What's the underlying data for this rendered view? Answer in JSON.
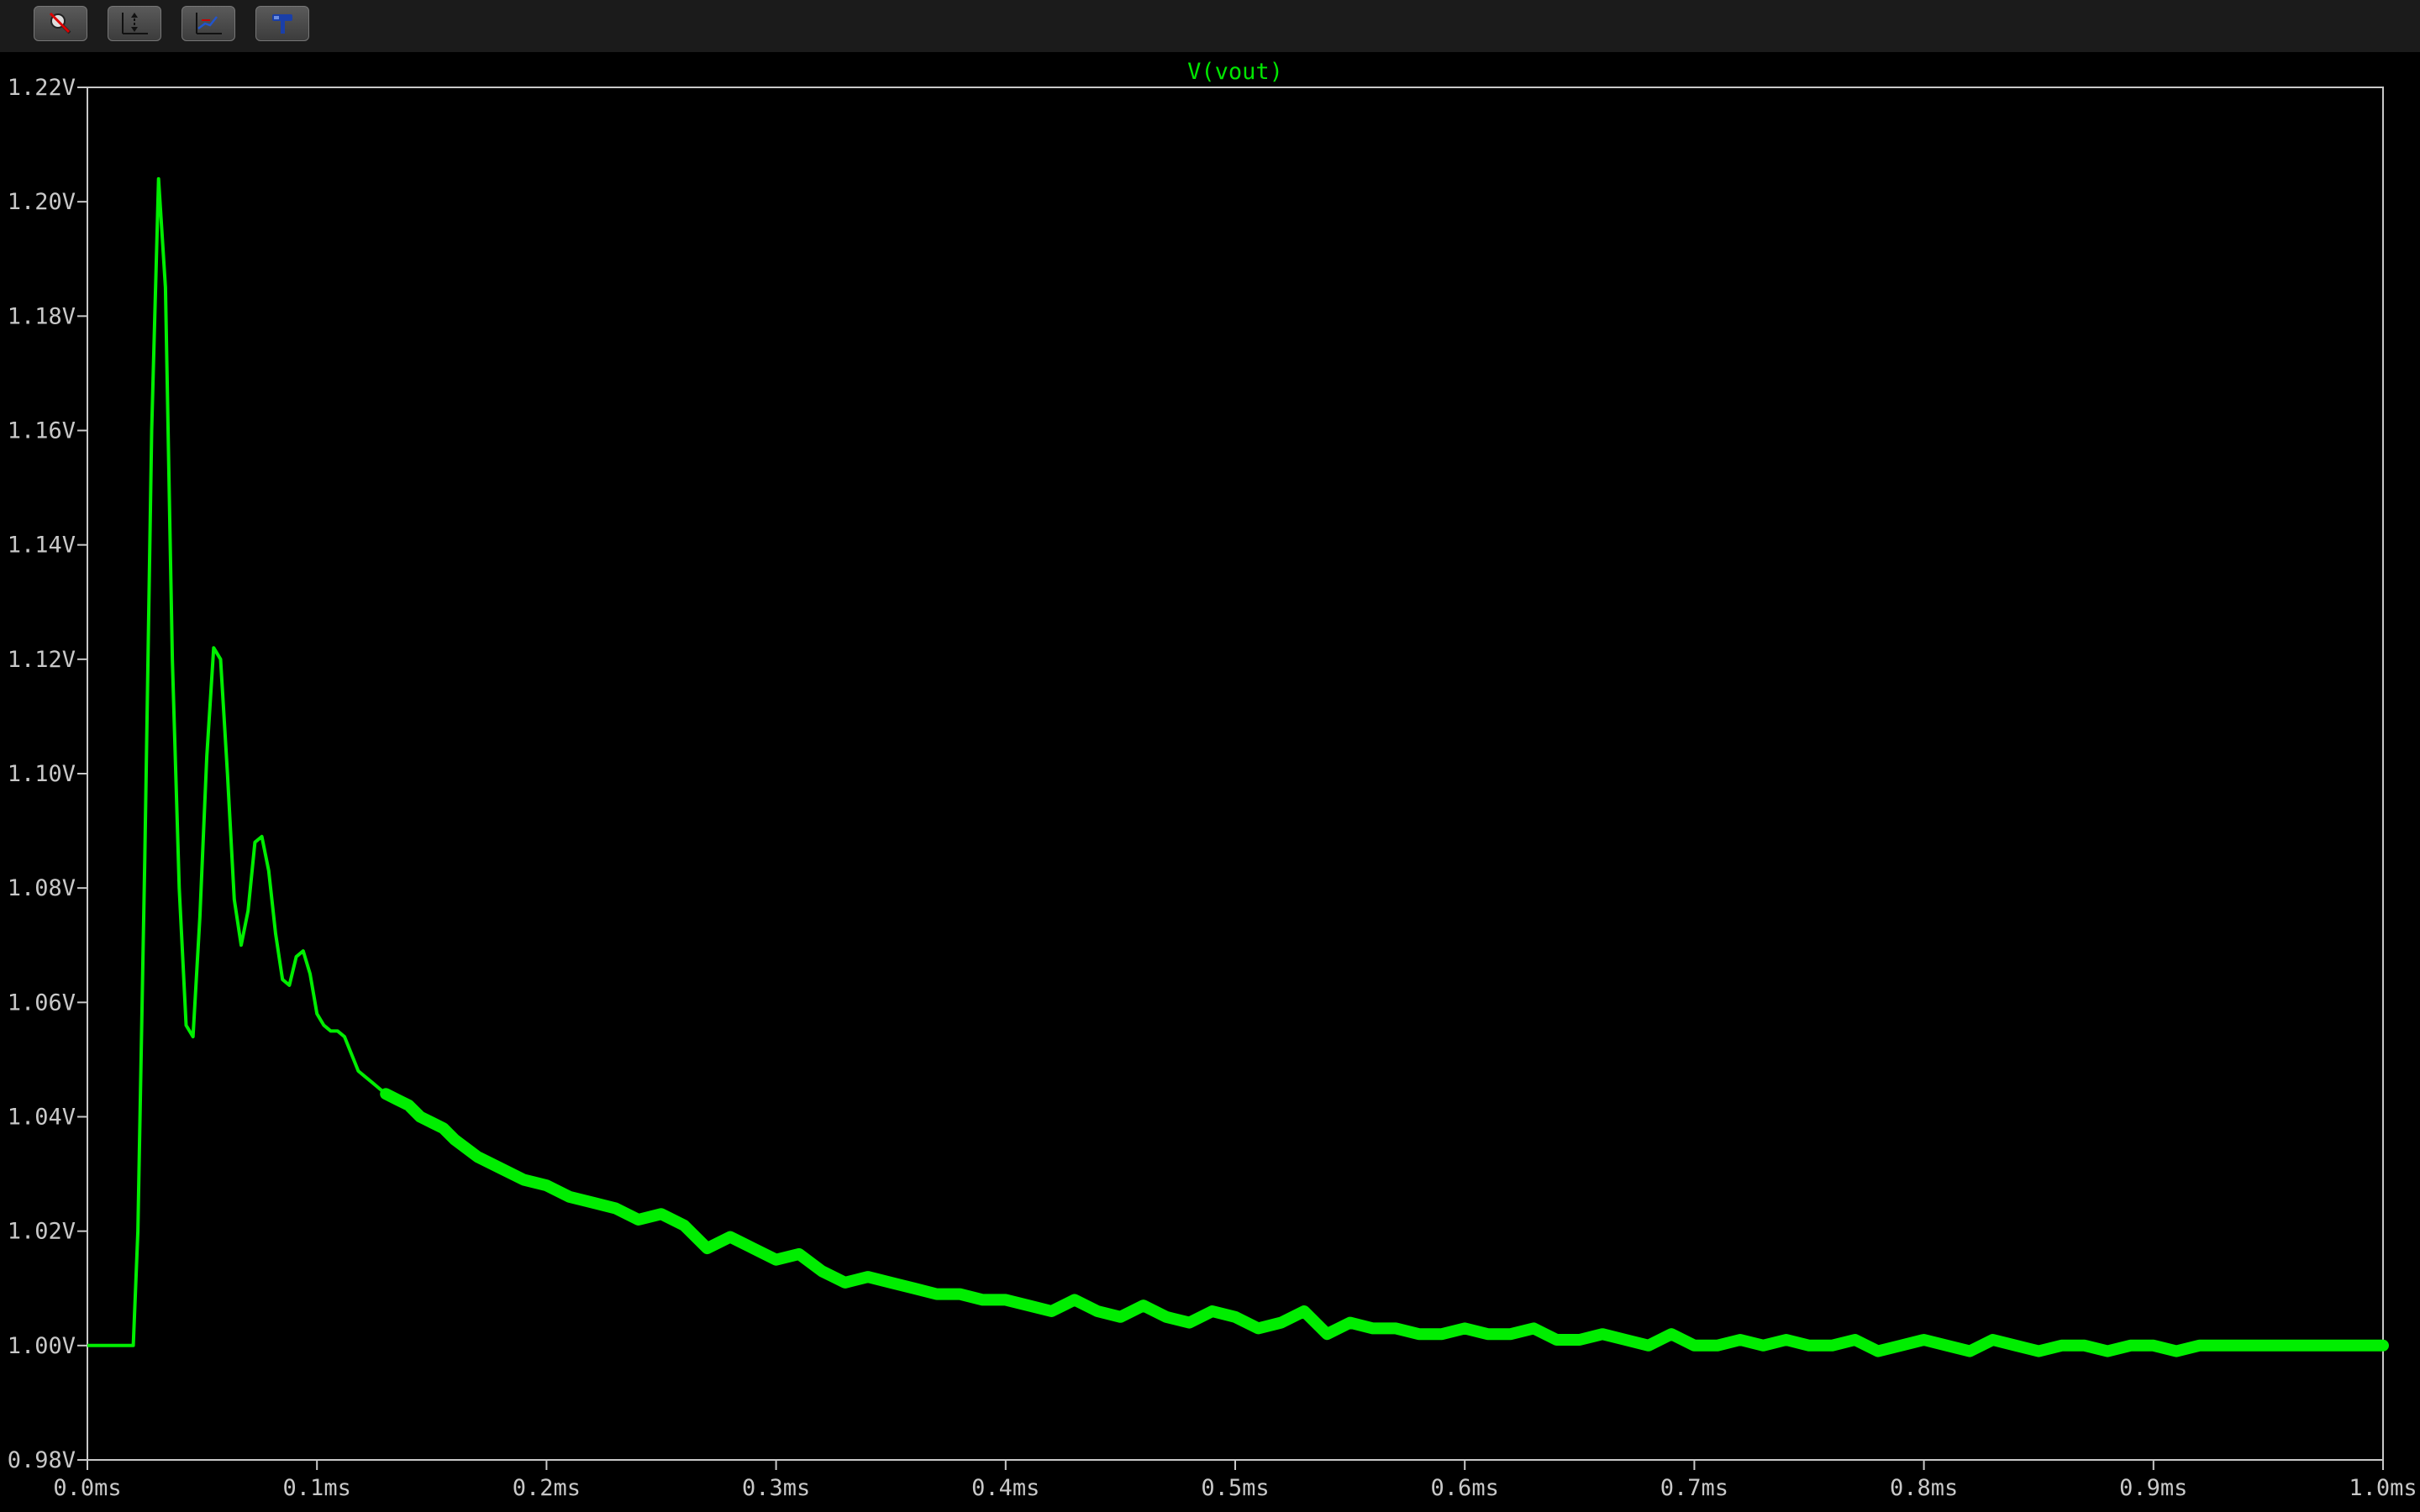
{
  "toolbar": {
    "buttons": [
      {
        "name": "zoom-cancel",
        "icon": "magnifier-cancel-icon"
      },
      {
        "name": "autorange-y",
        "icon": "autorange-y-icon"
      },
      {
        "name": "autorange-x",
        "icon": "autorange-x-icon"
      },
      {
        "name": "probe",
        "icon": "hammer-probe-icon"
      }
    ]
  },
  "colors": {
    "background": "#000000",
    "trace": "#00ee00",
    "axis": "#c8c8c8",
    "toolbar": "#1b1b1b"
  },
  "chart_data": {
    "type": "line",
    "title": "V(vout)",
    "xlabel": "",
    "ylabel": "",
    "xlim": [
      0.0,
      1.0
    ],
    "ylim": [
      0.98,
      1.22
    ],
    "grid": false,
    "x_ticks": [
      0.0,
      0.1,
      0.2,
      0.3,
      0.4,
      0.5,
      0.6,
      0.7,
      0.8,
      0.9,
      1.0
    ],
    "x_tick_labels": [
      "0.0ms",
      "0.1ms",
      "0.2ms",
      "0.3ms",
      "0.4ms",
      "0.5ms",
      "0.6ms",
      "0.7ms",
      "0.8ms",
      "0.9ms",
      "1.0ms"
    ],
    "y_ticks": [
      0.98,
      1.0,
      1.02,
      1.04,
      1.06,
      1.08,
      1.1,
      1.12,
      1.14,
      1.16,
      1.18,
      1.2,
      1.22
    ],
    "y_tick_labels": [
      "0.98V",
      "1.00V",
      "1.02V",
      "1.04V",
      "1.06V",
      "1.08V",
      "1.10V",
      "1.12V",
      "1.14V",
      "1.16V",
      "1.18V",
      "1.20V",
      "1.22V"
    ],
    "series": [
      {
        "name": "V(vout)",
        "x": [
          0.0,
          0.02,
          0.022,
          0.025,
          0.028,
          0.031,
          0.034,
          0.037,
          0.04,
          0.043,
          0.046,
          0.049,
          0.052,
          0.055,
          0.058,
          0.061,
          0.064,
          0.067,
          0.07,
          0.073,
          0.076,
          0.079,
          0.082,
          0.085,
          0.088,
          0.091,
          0.094,
          0.097,
          0.1,
          0.103,
          0.106,
          0.109,
          0.112,
          0.115,
          0.118,
          0.121,
          0.124,
          0.127,
          0.13,
          0.135,
          0.14,
          0.145,
          0.15,
          0.155,
          0.16,
          0.17,
          0.18,
          0.19,
          0.2,
          0.21,
          0.22,
          0.23,
          0.24,
          0.25,
          0.26,
          0.27,
          0.28,
          0.29,
          0.3,
          0.31,
          0.32,
          0.33,
          0.34,
          0.35,
          0.36,
          0.37,
          0.38,
          0.39,
          0.4,
          0.41,
          0.42,
          0.43,
          0.44,
          0.45,
          0.46,
          0.47,
          0.48,
          0.49,
          0.5,
          0.51,
          0.52,
          0.53,
          0.54,
          0.55,
          0.56,
          0.57,
          0.58,
          0.59,
          0.6,
          0.61,
          0.62,
          0.63,
          0.64,
          0.65,
          0.66,
          0.67,
          0.68,
          0.69,
          0.7,
          0.71,
          0.72,
          0.73,
          0.74,
          0.75,
          0.76,
          0.77,
          0.78,
          0.79,
          0.8,
          0.81,
          0.82,
          0.83,
          0.84,
          0.85,
          0.86,
          0.87,
          0.88,
          0.89,
          0.9,
          0.91,
          0.92,
          0.93,
          0.94,
          0.95,
          0.96,
          0.97,
          0.98,
          0.99,
          1.0
        ],
        "y": [
          1.0,
          1.0,
          1.02,
          1.085,
          1.16,
          1.204,
          1.185,
          1.12,
          1.08,
          1.056,
          1.054,
          1.075,
          1.103,
          1.122,
          1.12,
          1.1,
          1.078,
          1.07,
          1.076,
          1.088,
          1.089,
          1.083,
          1.072,
          1.064,
          1.063,
          1.068,
          1.069,
          1.065,
          1.058,
          1.056,
          1.055,
          1.055,
          1.054,
          1.051,
          1.048,
          1.047,
          1.046,
          1.045,
          1.044,
          1.043,
          1.042,
          1.04,
          1.039,
          1.038,
          1.036,
          1.033,
          1.031,
          1.029,
          1.028,
          1.026,
          1.025,
          1.024,
          1.022,
          1.023,
          1.021,
          1.017,
          1.019,
          1.017,
          1.015,
          1.016,
          1.013,
          1.011,
          1.012,
          1.011,
          1.01,
          1.009,
          1.009,
          1.008,
          1.008,
          1.007,
          1.006,
          1.008,
          1.006,
          1.005,
          1.007,
          1.005,
          1.004,
          1.006,
          1.005,
          1.003,
          1.004,
          1.006,
          1.002,
          1.004,
          1.003,
          1.003,
          1.002,
          1.002,
          1.003,
          1.002,
          1.002,
          1.003,
          1.001,
          1.001,
          1.002,
          1.001,
          1.0,
          1.002,
          1.0,
          1.0,
          1.001,
          1.0,
          1.001,
          1.0,
          1.0,
          1.001,
          0.999,
          1.0,
          1.001,
          1.0,
          0.999,
          1.001,
          1.0,
          0.999,
          1.0,
          1.0,
          0.999,
          1.0,
          1.0,
          0.999,
          1.0,
          1.0,
          1.0,
          1.0,
          1.0,
          1.0,
          1.0,
          1.0,
          1.0
        ]
      }
    ]
  }
}
